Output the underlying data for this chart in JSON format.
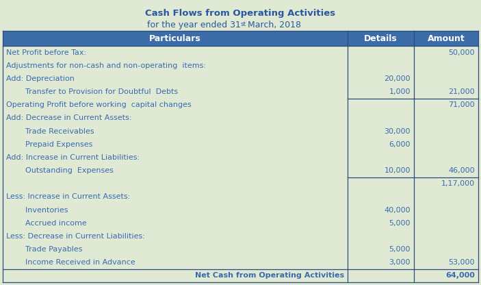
{
  "title_line1": "Cash Flows from Operating Activities",
  "title_line2_pre": "for the year ended 31",
  "title_line2_sup": "st",
  "title_line2_post": " March, 2018",
  "header_bg": "#3C6CA8",
  "header_fg": "#FFFFFF",
  "table_bg": "#DFE9D3",
  "body_fg": "#3A6AB0",
  "title_fg": "#2B57A0",
  "border_color": "#2B4A80",
  "rows": [
    {
      "particulars": "Net Profit before Tax:",
      "details": "",
      "amount": "50,000",
      "indent": false,
      "bold": false,
      "border_top": false,
      "last_row": false
    },
    {
      "particulars": "Adjustments for non-cash and non-operating  items:",
      "details": "",
      "amount": "",
      "indent": false,
      "bold": false,
      "border_top": false,
      "last_row": false
    },
    {
      "particulars": "Add: Depreciation",
      "details": "20,000",
      "amount": "",
      "indent": false,
      "bold": false,
      "border_top": false,
      "last_row": false
    },
    {
      "particulars": "        Transfer to Provision for Doubtful  Debts",
      "details": "1,000",
      "amount": "21,000",
      "indent": true,
      "bold": false,
      "border_top": false,
      "last_row": false
    },
    {
      "particulars": "Operating Profit before working  capital changes",
      "details": "",
      "amount": "71,000",
      "indent": false,
      "bold": false,
      "border_top": true,
      "last_row": false
    },
    {
      "particulars": "Add: Decrease in Current Assets:",
      "details": "",
      "amount": "",
      "indent": false,
      "bold": false,
      "border_top": false,
      "last_row": false
    },
    {
      "particulars": "        Trade Receivables",
      "details": "30,000",
      "amount": "",
      "indent": true,
      "bold": false,
      "border_top": false,
      "last_row": false
    },
    {
      "particulars": "        Prepaid Expenses",
      "details": "6,000",
      "amount": "",
      "indent": true,
      "bold": false,
      "border_top": false,
      "last_row": false
    },
    {
      "particulars": "Add: Increase in Current Liabilities:",
      "details": "",
      "amount": "",
      "indent": false,
      "bold": false,
      "border_top": false,
      "last_row": false
    },
    {
      "particulars": "        Outstanding  Expenses",
      "details": "10,000",
      "amount": "46,000",
      "indent": true,
      "bold": false,
      "border_top": false,
      "last_row": false
    },
    {
      "particulars": "",
      "details": "",
      "amount": "1,17,000",
      "indent": false,
      "bold": false,
      "border_top": true,
      "last_row": false
    },
    {
      "particulars": "Less: Increase in Current Assets:",
      "details": "",
      "amount": "",
      "indent": false,
      "bold": false,
      "border_top": false,
      "last_row": false
    },
    {
      "particulars": "        Inventories",
      "details": "40,000",
      "amount": "",
      "indent": true,
      "bold": false,
      "border_top": false,
      "last_row": false
    },
    {
      "particulars": "        Accrued income",
      "details": "5,000",
      "amount": "",
      "indent": true,
      "bold": false,
      "border_top": false,
      "last_row": false
    },
    {
      "particulars": "Less: Decrease in Current Liabilities:",
      "details": "",
      "amount": "",
      "indent": false,
      "bold": false,
      "border_top": false,
      "last_row": false
    },
    {
      "particulars": "        Trade Payables",
      "details": "5,000",
      "amount": "",
      "indent": true,
      "bold": false,
      "border_top": false,
      "last_row": false
    },
    {
      "particulars": "        Income Received in Advance",
      "details": "3,000",
      "amount": "53,000",
      "indent": true,
      "bold": false,
      "border_top": false,
      "last_row": false
    },
    {
      "particulars": "Net Cash from Operating Activities",
      "details": "",
      "amount": "64,000",
      "indent": false,
      "bold": true,
      "border_top": true,
      "last_row": true
    }
  ]
}
